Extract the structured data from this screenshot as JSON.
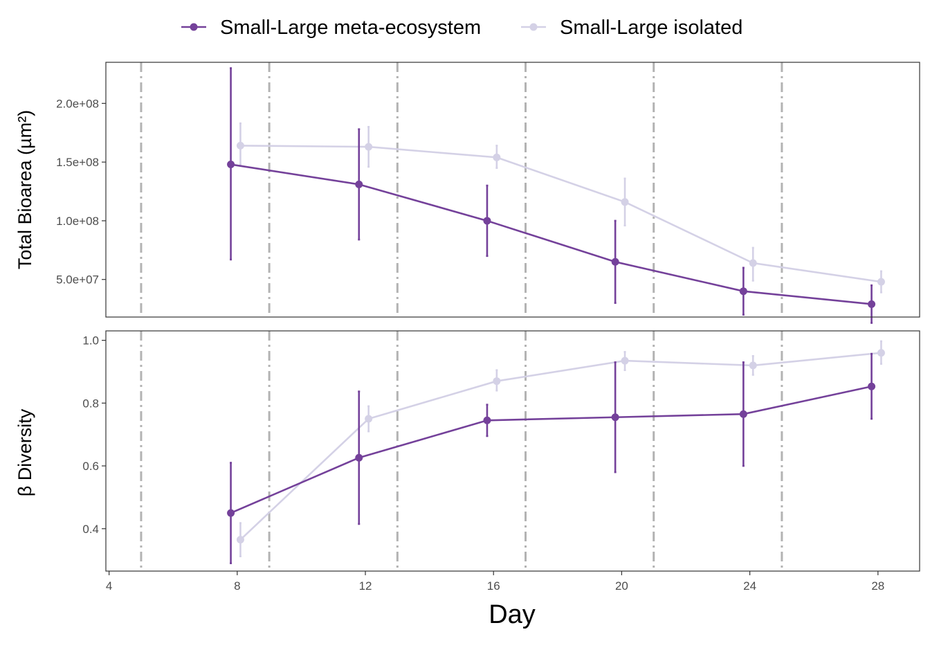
{
  "chart_data": {
    "type": "line",
    "xlabel": "Day",
    "x_ticks": [
      4,
      8,
      12,
      16,
      20,
      24,
      28
    ],
    "xlim": [
      3.9,
      29.3
    ],
    "vlines": [
      5,
      9,
      13,
      17,
      21,
      25
    ],
    "legend": {
      "position": "top",
      "entries": [
        {
          "name": "Small-Large meta-ecosystem",
          "color": "#74419a"
        },
        {
          "name": "Small-Large isolated",
          "color": "#d4d1e6"
        }
      ]
    },
    "panels": [
      {
        "ylabel": "Total Bioarea (µm²)",
        "ylim": [
          18000000,
          235000000
        ],
        "y_ticks": [
          50000000,
          100000000,
          150000000,
          200000000
        ],
        "y_tick_labels": [
          "5.0e+07",
          "1.0e+08",
          "1.5e+08",
          "2.0e+08"
        ],
        "series": [
          {
            "name": "Small-Large meta-ecosystem",
            "color": "#74419a",
            "x": [
              7.8,
              11.8,
              15.8,
              19.8,
              23.8,
              27.8
            ],
            "y": [
              148000000,
              131000000,
              100000000,
              65000000,
              40000000,
              29000000
            ],
            "ymin": [
              67000000,
              84000000,
              70000000,
              30000000,
              20000000,
              13000000
            ],
            "ymax": [
              230000000,
              178000000,
              130000000,
              100000000,
              60000000,
              45000000
            ]
          },
          {
            "name": "Small-Large isolated",
            "color": "#d4d1e6",
            "x": [
              8.1,
              12.1,
              16.1,
              20.1,
              24.1,
              28.1
            ],
            "y": [
              164000000,
              163000000,
              154000000,
              116000000,
              64000000,
              48000000
            ],
            "ymin": [
              148000000,
              146000000,
              145000000,
              96000000,
              49000000,
              39000000
            ],
            "ymax": [
              183000000,
              180000000,
              164000000,
              136000000,
              77000000,
              57000000
            ]
          }
        ]
      },
      {
        "ylabel": "β Diversity",
        "ylim": [
          0.265,
          1.03
        ],
        "y_ticks": [
          0.4,
          0.6,
          0.8,
          1.0
        ],
        "y_tick_labels": [
          "0.4",
          "0.6",
          "0.8",
          "1.0"
        ],
        "series": [
          {
            "name": "Small-Large meta-ecosystem",
            "color": "#74419a",
            "x": [
              7.8,
              11.8,
              15.8,
              19.8,
              23.8,
              27.8
            ],
            "y": [
              0.45,
              0.626,
              0.745,
              0.755,
              0.765,
              0.853
            ],
            "ymin": [
              0.29,
              0.415,
              0.695,
              0.58,
              0.6,
              0.75
            ],
            "ymax": [
              0.61,
              0.837,
              0.795,
              0.93,
              0.93,
              0.957
            ]
          },
          {
            "name": "Small-Large isolated",
            "color": "#d4d1e6",
            "x": [
              8.1,
              12.1,
              16.1,
              20.1,
              24.1,
              28.1
            ],
            "y": [
              0.365,
              0.75,
              0.87,
              0.935,
              0.92,
              0.96
            ],
            "ymin": [
              0.312,
              0.71,
              0.84,
              0.905,
              0.89,
              0.925
            ],
            "ymax": [
              0.418,
              0.79,
              0.905,
              0.963,
              0.95,
              0.997
            ]
          }
        ]
      }
    ]
  }
}
